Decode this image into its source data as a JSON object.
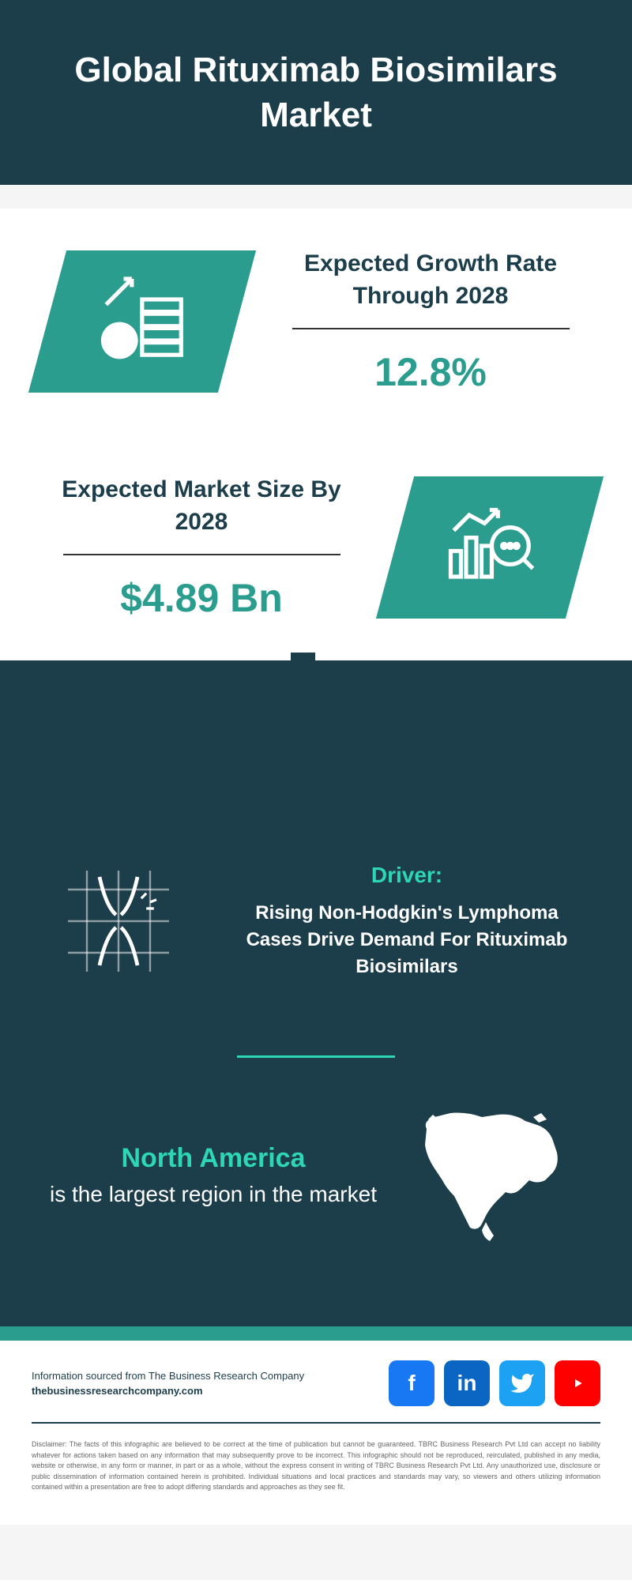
{
  "header": {
    "title": "Global Rituximab Biosimilars Market"
  },
  "stats": [
    {
      "label": "Expected Growth Rate Through 2028",
      "value": "12.8%",
      "icon": "money-growth-icon",
      "side": "left"
    },
    {
      "label": "Expected Market Size By 2028",
      "value": "$4.89 Bn",
      "icon": "analytics-icon",
      "side": "right"
    }
  ],
  "driver": {
    "label": "Driver:",
    "description": "Rising Non-Hodgkin's Lymphoma Cases Drive Demand For Rituximab Biosimilars",
    "icon": "joint-icon"
  },
  "region": {
    "name": "North America",
    "description": "is the largest region in the market"
  },
  "footer": {
    "source_line": "Information sourced from The Business Research Company",
    "website": "thebusinessresearchcompany.com",
    "disclaimer": "Disclaimer: The facts of this infographic are believed to be correct at the time of publication but cannot be guaranteed. TBRC Business Research Pvt Ltd can accept no liability whatever for actions taken based on any information that may subsequently prove to be incorrect. This infographic should not be reproduced, reirculated, published in any media, website or otherwise, in any form or manner, in part or as a whole, without the express consent in writing of TBRC Business Research Pvt Ltd. Any unauthorized use, disclosure or public dissemination of information contained herein is prohibited. Individual situations and local practices and standards may vary, so viewers and others utilizing information contained within a presentation are free to adopt differing standards and approaches as they see fit."
  },
  "colors": {
    "dark_teal": "#1c3d4a",
    "teal": "#2a9d8f",
    "bright_teal": "#2ed6b8",
    "white": "#ffffff"
  },
  "skyline": {
    "building_heights": [
      60,
      120,
      90,
      180,
      70,
      200,
      110,
      150,
      80,
      170,
      95,
      210,
      130,
      85,
      160,
      100,
      190,
      75,
      140,
      105,
      175,
      90,
      155,
      70
    ]
  }
}
